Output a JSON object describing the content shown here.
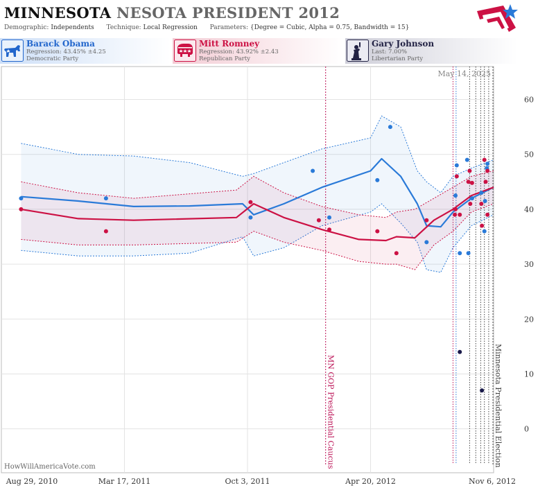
{
  "header": {
    "title_primary": "MINNESOTA",
    "title_secondary": "NESOTA PRESIDENT 2012",
    "demographic_label": "Demographic:",
    "demographic_value": "Independents",
    "technique_label": "Technique:",
    "technique_value": "Local Regression",
    "parameters_label": "Parameters:",
    "parameters_value": "{Degree = Cubic, Alpha = 0.75, Bandwidth = 15}"
  },
  "candidates": [
    {
      "name": "Barack Obama",
      "line1": "Regression: 43.45% ±4.25",
      "line2": "Democratic Party",
      "color": "#2266cc",
      "icon": "democrat-donkey-icon"
    },
    {
      "name": "Mitt Romney",
      "line1": "Regression: 43.92% ±2.43",
      "line2": "Republican Party",
      "color": "#cc1144",
      "icon": "republican-elephant-icon"
    },
    {
      "name": "Gary Johnson",
      "line1": "Last: 7.00%",
      "line2": "Libertarian Party",
      "color": "#222244",
      "icon": "liberty-statue-icon"
    }
  ],
  "footer": {
    "source": "HowWillAmericaVote.com"
  },
  "colors": {
    "obama": "#2a7ad8",
    "romney": "#cc1144",
    "johnson": "#1a1a4a"
  },
  "chart_data": {
    "type": "scatter",
    "date_label": "May 14, 2025",
    "x_ticks": [
      "Aug 29, 2010",
      "Mar 17, 2011",
      "Oct 3, 2011",
      "Apr 20, 2012",
      "Nov 6, 2012"
    ],
    "x_tick_dates": [
      "2010-08-29",
      "2011-03-17",
      "2011-10-03",
      "2012-04-20",
      "2012-11-06"
    ],
    "x_range": [
      "2010-08-29",
      "2012-11-06"
    ],
    "y_range": [
      -8,
      66
    ],
    "y_ticks": [
      0,
      10,
      20,
      30,
      40,
      50,
      60
    ],
    "grid": true,
    "events": [
      {
        "label": "MN GOP Presidential Caucus",
        "date": "2012-02-07",
        "color": "#bb1155"
      },
      {
        "label": "Minnesota Presidential Election",
        "date": "2012-11-06",
        "color": "#555555"
      }
    ],
    "poll_lines": [
      {
        "date": "2012-09-01",
        "color": "#bb1155"
      },
      {
        "date": "2012-09-06",
        "color": "#2a7ad8"
      },
      {
        "date": "2012-09-28",
        "color": "#444444"
      },
      {
        "date": "2012-10-08",
        "color": "#444444"
      },
      {
        "date": "2012-10-16",
        "color": "#444444"
      },
      {
        "date": "2012-10-22",
        "color": "#444444"
      },
      {
        "date": "2012-10-29",
        "color": "#444444"
      }
    ],
    "series": [
      {
        "name": "Barack Obama",
        "key": "obama",
        "points": [
          {
            "x": "2010-09-30",
            "y": 42
          },
          {
            "x": "2011-02-15",
            "y": 42
          },
          {
            "x": "2011-10-08",
            "y": 38.5
          },
          {
            "x": "2012-01-17",
            "y": 47
          },
          {
            "x": "2012-02-13",
            "y": 38.5
          },
          {
            "x": "2012-05-01",
            "y": 45.3
          },
          {
            "x": "2012-05-22",
            "y": 55
          },
          {
            "x": "2012-07-20",
            "y": 34
          },
          {
            "x": "2012-09-05",
            "y": 42.5
          },
          {
            "x": "2012-09-07",
            "y": 48
          },
          {
            "x": "2012-09-12",
            "y": 32
          },
          {
            "x": "2012-09-24",
            "y": 49
          },
          {
            "x": "2012-09-26",
            "y": 32
          },
          {
            "x": "2012-10-02",
            "y": 42
          },
          {
            "x": "2012-10-17",
            "y": 43
          },
          {
            "x": "2012-10-22",
            "y": 36
          },
          {
            "x": "2012-10-23",
            "y": 41.5
          },
          {
            "x": "2012-10-26",
            "y": 47.5
          },
          {
            "x": "2012-10-27",
            "y": 48.3
          }
        ],
        "trend": [
          {
            "x": "2010-09-30",
            "y": 42.3
          },
          {
            "x": "2011-01-01",
            "y": 41.5
          },
          {
            "x": "2011-04-01",
            "y": 40.5
          },
          {
            "x": "2011-07-01",
            "y": 40.6
          },
          {
            "x": "2011-09-25",
            "y": 41.0
          },
          {
            "x": "2011-10-13",
            "y": 39.0
          },
          {
            "x": "2011-12-01",
            "y": 41.0
          },
          {
            "x": "2012-02-01",
            "y": 44.0
          },
          {
            "x": "2012-04-20",
            "y": 47.0
          },
          {
            "x": "2012-05-08",
            "y": 49.2
          },
          {
            "x": "2012-06-08",
            "y": 46.0
          },
          {
            "x": "2012-07-05",
            "y": 41.0
          },
          {
            "x": "2012-07-20",
            "y": 37.0
          },
          {
            "x": "2012-08-12",
            "y": 36.8
          },
          {
            "x": "2012-09-01",
            "y": 39.5
          },
          {
            "x": "2012-10-01",
            "y": 42.0
          },
          {
            "x": "2012-11-06",
            "y": 44.0
          }
        ],
        "band_upper": [
          {
            "x": "2010-09-30",
            "y": 52
          },
          {
            "x": "2011-01-01",
            "y": 50
          },
          {
            "x": "2011-04-01",
            "y": 49.7
          },
          {
            "x": "2011-07-01",
            "y": 48.5
          },
          {
            "x": "2011-09-25",
            "y": 46.0
          },
          {
            "x": "2011-10-13",
            "y": 46.5
          },
          {
            "x": "2011-12-01",
            "y": 48.5
          },
          {
            "x": "2012-02-01",
            "y": 51.0
          },
          {
            "x": "2012-04-20",
            "y": 53.0
          },
          {
            "x": "2012-05-08",
            "y": 57.0
          },
          {
            "x": "2012-06-08",
            "y": 55.0
          },
          {
            "x": "2012-07-05",
            "y": 47.0
          },
          {
            "x": "2012-07-20",
            "y": 45.0
          },
          {
            "x": "2012-08-12",
            "y": 43.0
          },
          {
            "x": "2012-09-01",
            "y": 46.0
          },
          {
            "x": "2012-10-01",
            "y": 47.5
          },
          {
            "x": "2012-11-06",
            "y": 49.0
          }
        ],
        "band_lower": [
          {
            "x": "2010-09-30",
            "y": 32.5
          },
          {
            "x": "2011-01-01",
            "y": 31.5
          },
          {
            "x": "2011-04-01",
            "y": 31.5
          },
          {
            "x": "2011-07-01",
            "y": 32.0
          },
          {
            "x": "2011-09-25",
            "y": 35.0
          },
          {
            "x": "2011-10-13",
            "y": 31.5
          },
          {
            "x": "2011-12-01",
            "y": 33.0
          },
          {
            "x": "2012-02-01",
            "y": 37.0
          },
          {
            "x": "2012-04-20",
            "y": 39.5
          },
          {
            "x": "2012-05-08",
            "y": 41.0
          },
          {
            "x": "2012-06-08",
            "y": 37.5
          },
          {
            "x": "2012-07-05",
            "y": 34.0
          },
          {
            "x": "2012-07-20",
            "y": 29.0
          },
          {
            "x": "2012-08-12",
            "y": 28.5
          },
          {
            "x": "2012-09-01",
            "y": 33.0
          },
          {
            "x": "2012-10-01",
            "y": 37.0
          },
          {
            "x": "2012-11-06",
            "y": 39.0
          }
        ]
      },
      {
        "name": "Mitt Romney",
        "key": "romney",
        "points": [
          {
            "x": "2010-09-30",
            "y": 40
          },
          {
            "x": "2011-02-15",
            "y": 36
          },
          {
            "x": "2011-10-08",
            "y": 41.3
          },
          {
            "x": "2012-01-27",
            "y": 38
          },
          {
            "x": "2012-02-13",
            "y": 36.3
          },
          {
            "x": "2012-05-01",
            "y": 36
          },
          {
            "x": "2012-06-01",
            "y": 32
          },
          {
            "x": "2012-07-20",
            "y": 38
          },
          {
            "x": "2012-09-04",
            "y": 39
          },
          {
            "x": "2012-09-05",
            "y": 40
          },
          {
            "x": "2012-09-07",
            "y": 46
          },
          {
            "x": "2012-09-12",
            "y": 39
          },
          {
            "x": "2012-09-26",
            "y": 45
          },
          {
            "x": "2012-09-28",
            "y": 47
          },
          {
            "x": "2012-09-29",
            "y": 41
          },
          {
            "x": "2012-10-02",
            "y": 44.8
          },
          {
            "x": "2012-10-17",
            "y": 41
          },
          {
            "x": "2012-10-18",
            "y": 37
          },
          {
            "x": "2012-10-22",
            "y": 49
          },
          {
            "x": "2012-10-24",
            "y": 45
          },
          {
            "x": "2012-10-27",
            "y": 39
          },
          {
            "x": "2012-10-27",
            "y": 47
          }
        ],
        "trend": [
          {
            "x": "2010-09-30",
            "y": 40.0
          },
          {
            "x": "2011-01-01",
            "y": 38.3
          },
          {
            "x": "2011-04-01",
            "y": 38.0
          },
          {
            "x": "2011-09-15",
            "y": 38.5
          },
          {
            "x": "2011-10-13",
            "y": 41.0
          },
          {
            "x": "2011-12-01",
            "y": 38.5
          },
          {
            "x": "2012-02-01",
            "y": 36.3
          },
          {
            "x": "2012-04-01",
            "y": 34.5
          },
          {
            "x": "2012-05-15",
            "y": 34.3
          },
          {
            "x": "2012-06-01",
            "y": 35.0
          },
          {
            "x": "2012-07-01",
            "y": 34.8
          },
          {
            "x": "2012-08-01",
            "y": 38.0
          },
          {
            "x": "2012-09-01",
            "y": 40.0
          },
          {
            "x": "2012-10-01",
            "y": 42.5
          },
          {
            "x": "2012-11-06",
            "y": 44.0
          }
        ],
        "band_upper": [
          {
            "x": "2010-09-30",
            "y": 45.0
          },
          {
            "x": "2011-01-01",
            "y": 43.0
          },
          {
            "x": "2011-04-01",
            "y": 42.0
          },
          {
            "x": "2011-09-15",
            "y": 43.5
          },
          {
            "x": "2011-10-13",
            "y": 46.0
          },
          {
            "x": "2011-12-01",
            "y": 43.0
          },
          {
            "x": "2012-02-01",
            "y": 40.5
          },
          {
            "x": "2012-04-01",
            "y": 39.0
          },
          {
            "x": "2012-05-15",
            "y": 38.5
          },
          {
            "x": "2012-06-01",
            "y": 39.5
          },
          {
            "x": "2012-07-01",
            "y": 40.0
          },
          {
            "x": "2012-08-01",
            "y": 42.0
          },
          {
            "x": "2012-09-01",
            "y": 44.0
          },
          {
            "x": "2012-10-01",
            "y": 46.0
          },
          {
            "x": "2012-11-06",
            "y": 47.0
          }
        ],
        "band_lower": [
          {
            "x": "2010-09-30",
            "y": 34.5
          },
          {
            "x": "2011-01-01",
            "y": 33.5
          },
          {
            "x": "2011-04-01",
            "y": 33.5
          },
          {
            "x": "2011-09-15",
            "y": 34.0
          },
          {
            "x": "2011-10-13",
            "y": 36.0
          },
          {
            "x": "2011-12-01",
            "y": 34.0
          },
          {
            "x": "2012-02-01",
            "y": 32.5
          },
          {
            "x": "2012-04-01",
            "y": 30.5
          },
          {
            "x": "2012-05-15",
            "y": 30.0
          },
          {
            "x": "2012-06-01",
            "y": 30.0
          },
          {
            "x": "2012-07-01",
            "y": 29.0
          },
          {
            "x": "2012-08-01",
            "y": 33.5
          },
          {
            "x": "2012-09-01",
            "y": 36.0
          },
          {
            "x": "2012-10-01",
            "y": 39.5
          },
          {
            "x": "2012-11-06",
            "y": 41.0
          }
        ]
      },
      {
        "name": "Gary Johnson",
        "key": "johnson",
        "points": [
          {
            "x": "2012-09-12",
            "y": 14
          },
          {
            "x": "2012-10-18",
            "y": 7
          }
        ]
      }
    ]
  }
}
